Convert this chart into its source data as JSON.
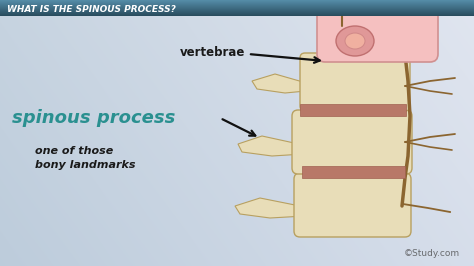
{
  "title_text": "WHAT IS THE SPINOUS PROCESS?",
  "title_color": "#ffffff",
  "title_fontsize": 6.5,
  "label_vertebrae": "vertebrae",
  "label_spinous": "spinous process",
  "label_bony": "one of those\nbony landmarks",
  "watermark": "©Study.com",
  "spinous_color": "#2a9090",
  "text_color": "#1a1a1a",
  "arrow_color": "#111111",
  "bone_color": "#e8ddb8",
  "bone_mid": "#d4c898",
  "bone_edge": "#b8a060",
  "disc_color": "#c8a870",
  "nerve_color": "#8B6530",
  "pink_light": "#f5c0c0",
  "pink_dark": "#e08888",
  "title_bar_dark": "#2a5060",
  "title_bar_light": "#5090a8",
  "bg_left": "#c0cdd8",
  "bg_right": "#d8e4ec"
}
